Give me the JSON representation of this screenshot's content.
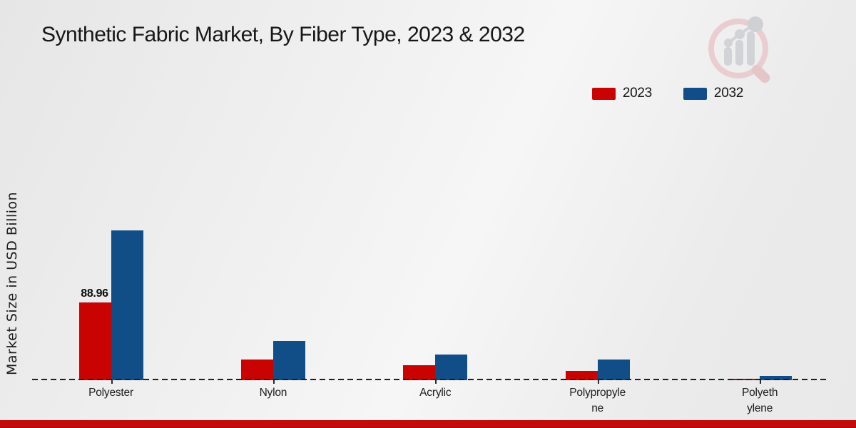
{
  "chart_data": {
    "type": "bar",
    "title": "Synthetic Fabric Market, By Fiber Type, 2023 & 2032",
    "ylabel": "Market Size in USD Billion",
    "xlabel": "",
    "categories": [
      "Polyester",
      "Nylon",
      "Acrylic",
      "Polypropylene",
      "Polyethylene"
    ],
    "category_label_lines": [
      [
        "Polyester"
      ],
      [
        "Nylon"
      ],
      [
        "Acrylic"
      ],
      [
        "Polypropyle",
        "ne"
      ],
      [
        "Polyeth",
        "ylene"
      ]
    ],
    "series": [
      {
        "name": "2023",
        "color": "#c90202",
        "values": [
          88.96,
          23.5,
          17.5,
          11,
          1.6
        ]
      },
      {
        "name": "2032",
        "color": "#114e87",
        "values": [
          171.5,
          44.5,
          29,
          24,
          4.5
        ]
      }
    ],
    "bar_labels": [
      {
        "series": "2023",
        "category_index": 0,
        "text": "88.96"
      }
    ],
    "ylim": [
      0,
      380
    ],
    "grid": false,
    "legend_position": "top-right",
    "baseline_style": "dashed"
  },
  "branding": {
    "watermark_icon": "magnifier-bar-chart-logo",
    "footer_color": "#c20b0b",
    "footer_color_dark": "#a50707"
  }
}
